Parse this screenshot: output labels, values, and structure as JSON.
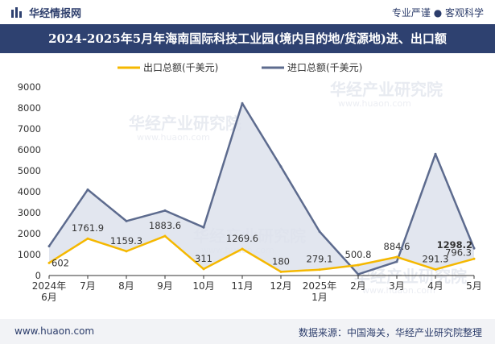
{
  "header": {
    "brand": "华经情报网",
    "slogan": "专业严谨 ● 客观科学"
  },
  "title": "2024-2025年5月年海南国际科技工业园(境内目的地/货源地)进、出口额",
  "footer": {
    "website": "www.huaon.com",
    "source": "数据来源：中国海关，华经产业研究院整理"
  },
  "watermark": {
    "cn": "华经产业研究院",
    "en": "www.huaon.com"
  },
  "colors": {
    "export": "#f5b800",
    "import": "#5d6b8e",
    "area": "#dde2ec",
    "header_bg": "#2e4170",
    "axis": "#333333"
  },
  "chart_data": {
    "type": "line",
    "title": "2024-2025年5月年海南国际科技工业园(境内目的地/货源地)进、出口额",
    "categories": [
      "2024年\n6月",
      "7月",
      "8月",
      "9月",
      "10月",
      "11月",
      "12月",
      "2025年\n1月",
      "2月",
      "3月",
      "4月",
      "5月"
    ],
    "ylim": [
      0,
      9000
    ],
    "yticks": [
      0,
      1000,
      2000,
      3000,
      4000,
      5000,
      6000,
      7000,
      8000,
      9000
    ],
    "legend_position": "top-center",
    "series": [
      {
        "name": "出口总额(千美元)",
        "color": "#f5b800",
        "values": [
          602,
          1761.9,
          1159.3,
          1883.6,
          311,
          1269.6,
          180,
          279.1,
          500.8,
          884.6,
          291.3,
          796.3
        ],
        "labels": [
          "602",
          "1761.9",
          "1159.3",
          "1883.6",
          "311",
          "1269.6",
          "180",
          "279.1",
          "500.8",
          "884.6",
          "291.3",
          "796.3"
        ]
      },
      {
        "name": "进口总额(千美元)",
        "color": "#5d6b8e",
        "values": [
          1400,
          4100,
          2600,
          3100,
          2300,
          8220,
          5200,
          2100,
          60,
          660,
          5800,
          1298.2
        ],
        "labels": [
          "",
          "",
          "",
          "",
          "",
          "",
          "",
          "",
          "",
          "",
          "",
          "1298.2"
        ]
      }
    ]
  }
}
